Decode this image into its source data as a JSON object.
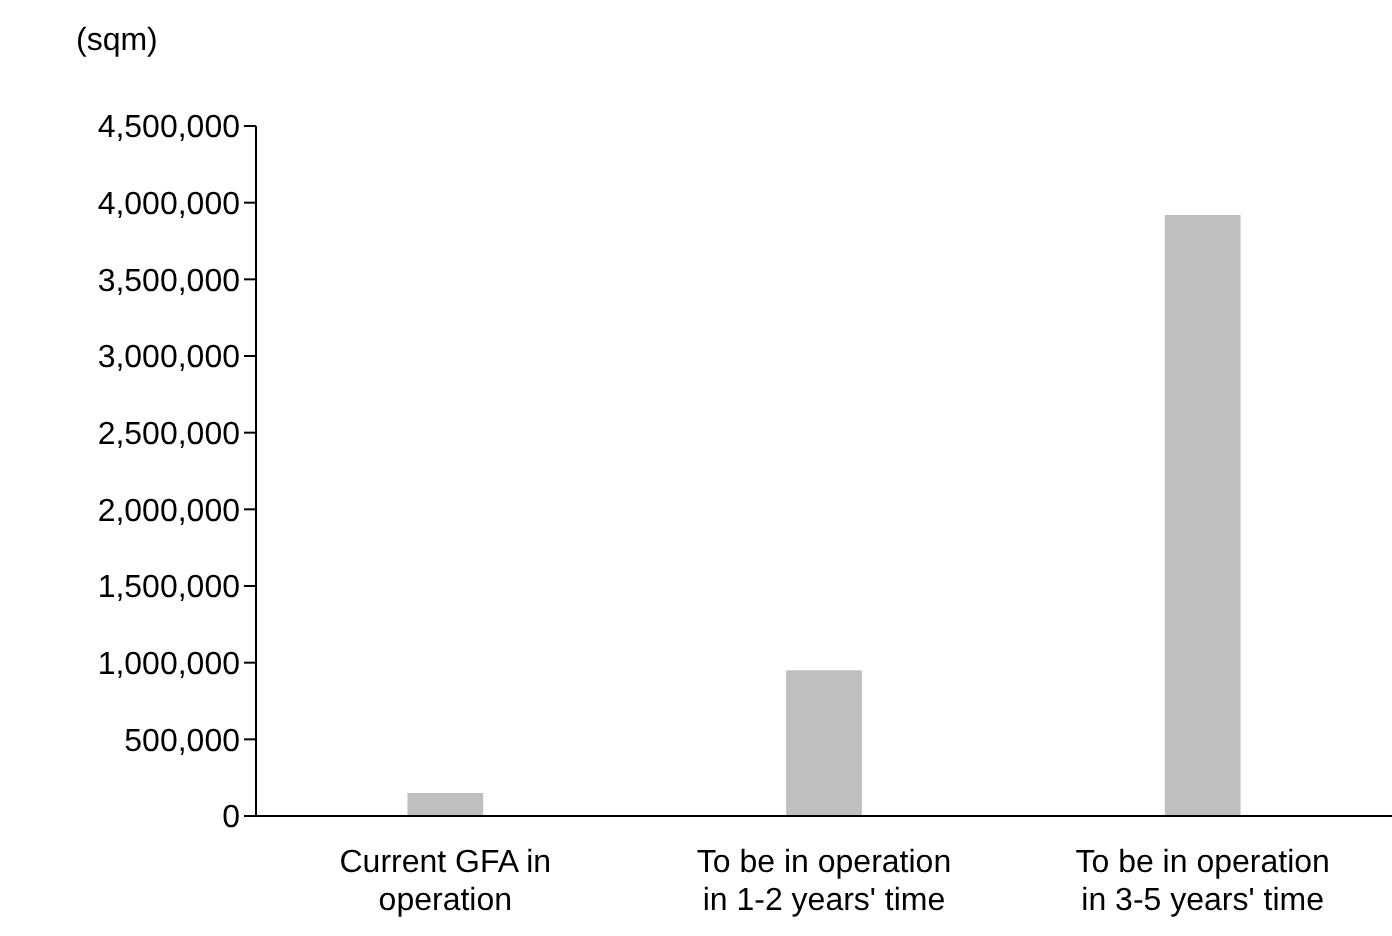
{
  "chart_data": {
    "type": "bar",
    "ylabel": "(sqm)",
    "categories": [
      "Current GFA in operation",
      "To be in operation in 1-2 years' time",
      "To be in operation in 3-5 years' time"
    ],
    "values": [
      150000,
      950000,
      3920000
    ],
    "color": "#bfbfbf",
    "ylim": [
      0,
      4500000
    ],
    "yticks": [
      0,
      {
        "value": 500000,
        "label": "500,000"
      },
      {
        "value": 1000000,
        "label": "1,000,000"
      },
      {
        "value": 1500000,
        "label": "1,500,000"
      },
      {
        "value": 2000000,
        "label": "2,000,000"
      },
      {
        "value": 2500000,
        "label": "2,500,000"
      },
      {
        "value": 3000000,
        "label": "3,000,000"
      },
      {
        "value": 3500000,
        "label": "3,500,000"
      },
      {
        "value": 4000000,
        "label": "4,000,000"
      },
      {
        "value": 4500000,
        "label": "4,500,000"
      }
    ],
    "grid": false,
    "legend": false
  }
}
